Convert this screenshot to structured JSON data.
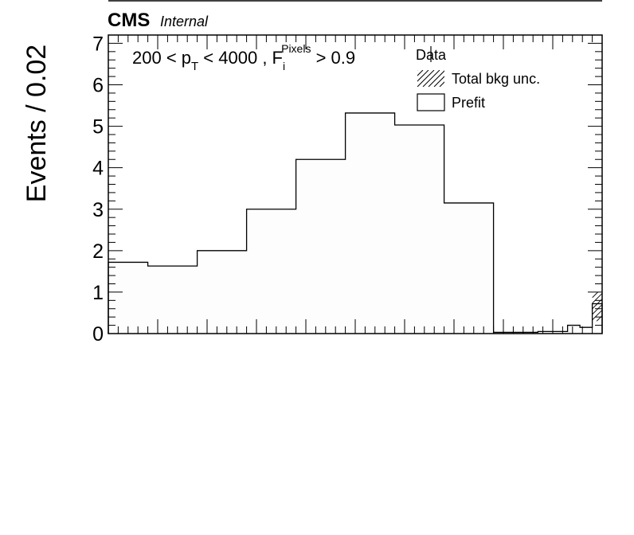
{
  "header": {
    "cms_label": "CMS",
    "internal_label": "Internal"
  },
  "region": {
    "prefix": "200 < p",
    "pt_sub": "T",
    "middle": " < 4000 , F",
    "f_sub": "i",
    "f_sup": "Pixels",
    "suffix": " > 0.9"
  },
  "legend": {
    "placement": "top-right",
    "entries": [
      {
        "label": "Data",
        "style": "marker"
      },
      {
        "label": "Total bkg unc.",
        "style": "hatched"
      },
      {
        "label": "Prefit",
        "style": "box"
      }
    ]
  },
  "chart_data": {
    "type": "bar",
    "histogram_style": "step",
    "title": "",
    "xlabel": "",
    "ylabel": "Events / 0.02",
    "ylim": [
      0,
      7.2
    ],
    "y_ticks": [
      "0",
      "1",
      "2",
      "3",
      "4",
      "5",
      "6",
      "7"
    ],
    "x_tick_labels_visible": false,
    "bins": {
      "edges": [
        0,
        0.08,
        0.18,
        0.28,
        0.38,
        0.48,
        0.58,
        0.68,
        0.78,
        0.87,
        0.93,
        0.955,
        0.98,
        1.0
      ],
      "values": [
        1.72,
        1.63,
        2.0,
        3.0,
        4.2,
        5.32,
        5.03,
        3.15,
        0.03,
        0.05,
        0.2,
        0.15,
        0.72
      ]
    },
    "uncertainty": {
      "label": "Total bkg unc.",
      "hatched_bins": [
        {
          "bin": 12,
          "low": 0.3,
          "high": 1.0
        }
      ]
    },
    "data_points": [],
    "colors": {
      "fill": "#fdfdfd",
      "line": "#000000"
    }
  }
}
